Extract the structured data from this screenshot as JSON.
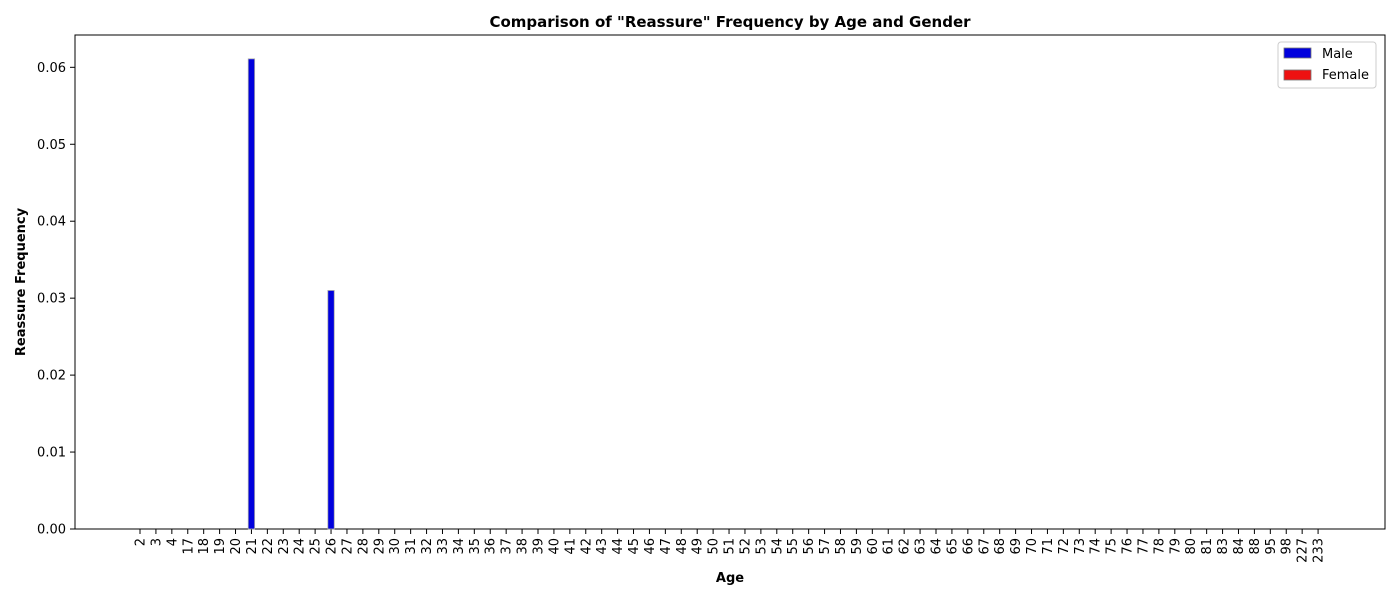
{
  "chart_data": {
    "type": "bar",
    "title": "Comparison of \"Reassure\" Frequency by Age and Gender",
    "xlabel": "Age",
    "ylabel": "Reassure Frequency",
    "ylim": [
      0,
      0.0642
    ],
    "yticks": [
      "0.00",
      "0.01",
      "0.02",
      "0.03",
      "0.04",
      "0.05",
      "0.06"
    ],
    "grid": false,
    "legend_position": "top-right",
    "categories": [
      "2",
      "3",
      "4",
      "17",
      "18",
      "19",
      "20",
      "21",
      "22",
      "23",
      "24",
      "25",
      "26",
      "27",
      "28",
      "29",
      "30",
      "31",
      "32",
      "33",
      "34",
      "35",
      "36",
      "37",
      "38",
      "39",
      "40",
      "41",
      "42",
      "43",
      "44",
      "45",
      "46",
      "47",
      "48",
      "49",
      "50",
      "51",
      "52",
      "53",
      "54",
      "55",
      "56",
      "57",
      "58",
      "59",
      "60",
      "61",
      "62",
      "63",
      "64",
      "65",
      "66",
      "67",
      "68",
      "69",
      "70",
      "71",
      "72",
      "73",
      "74",
      "75",
      "76",
      "77",
      "78",
      "79",
      "80",
      "81",
      "83",
      "84",
      "88",
      "95",
      "98",
      "227",
      "233"
    ],
    "series": [
      {
        "name": "Male",
        "color": "#0000dd",
        "values": [
          0,
          0,
          0,
          0,
          0,
          0,
          0,
          0.0611,
          0,
          0,
          0,
          0,
          0.031,
          0,
          0,
          0,
          0,
          0,
          0,
          0,
          0,
          0,
          0,
          0,
          0,
          0,
          0,
          0,
          0,
          0,
          0,
          0,
          0,
          0,
          0,
          0,
          0,
          0,
          0,
          0,
          0,
          0,
          0,
          0,
          0,
          0,
          0,
          0,
          0,
          0,
          0,
          0,
          0,
          0,
          0,
          0,
          0,
          0,
          0,
          0,
          0,
          0,
          0,
          0,
          0,
          0,
          0,
          0,
          0,
          0,
          0,
          0,
          0,
          0,
          0
        ]
      },
      {
        "name": "Female",
        "color": "#ee1111",
        "values": [
          0,
          0,
          0,
          0,
          0,
          0,
          0,
          0,
          0,
          0,
          0,
          0,
          0,
          0,
          0,
          0,
          0,
          0,
          0,
          0,
          0,
          0,
          0,
          0,
          0,
          0,
          0,
          0,
          0,
          0,
          0,
          0,
          0,
          0,
          0,
          0,
          0,
          0,
          0,
          0,
          0,
          0,
          0,
          0,
          0,
          0,
          0,
          0,
          0,
          0,
          0,
          0,
          0,
          0,
          0,
          0,
          0,
          0,
          0,
          0,
          0,
          0,
          0,
          0,
          0,
          0,
          0,
          0,
          0,
          0,
          0,
          0,
          0,
          0,
          0
        ]
      }
    ]
  }
}
